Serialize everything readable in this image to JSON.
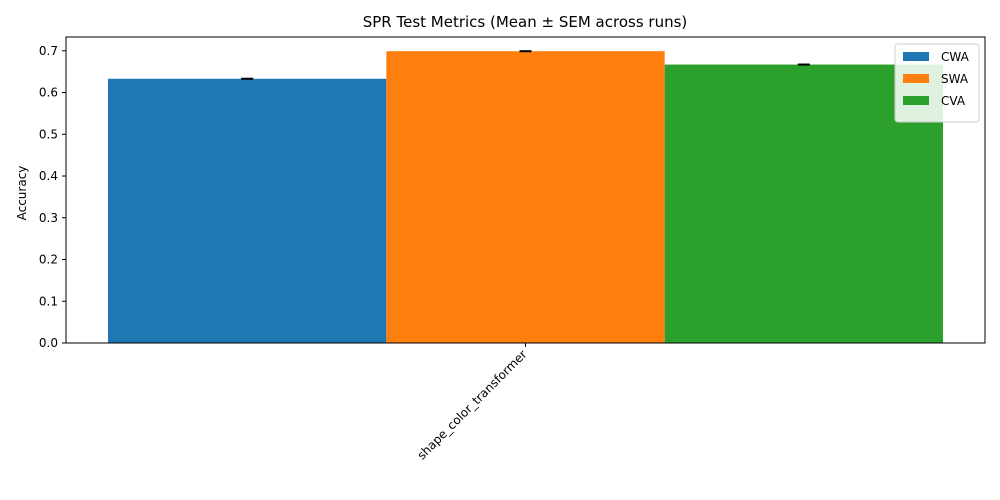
{
  "chart_data": {
    "type": "bar",
    "title": "SPR Test Metrics (Mean ± SEM across runs)",
    "xlabel": "",
    "ylabel": "Accuracy",
    "categories": [
      "shape_color_transformer"
    ],
    "series": [
      {
        "name": "CWA",
        "values": [
          0.633
        ],
        "errors": [
          0.001
        ],
        "color": "#1f77b4"
      },
      {
        "name": "SWA",
        "values": [
          0.699
        ],
        "errors": [
          0.001
        ],
        "color": "#ff7f0e"
      },
      {
        "name": "CVA",
        "values": [
          0.667
        ],
        "errors": [
          0.001
        ],
        "color": "#2ca02c"
      }
    ],
    "ylim": [
      0,
      0.733
    ],
    "yticks": [
      0.0,
      0.1,
      0.2,
      0.3,
      0.4,
      0.5,
      0.6,
      0.7
    ],
    "ytick_labels": [
      "0.0",
      "0.1",
      "0.2",
      "0.3",
      "0.4",
      "0.5",
      "0.6",
      "0.7"
    ],
    "legend_position": "top-right",
    "grid": false
  }
}
